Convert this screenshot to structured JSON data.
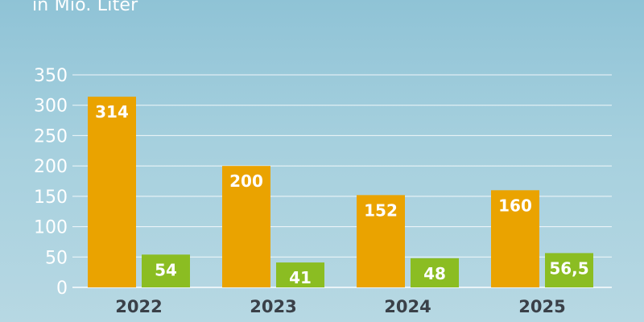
{
  "chart_data": {
    "type": "bar",
    "subtitle": "in Mio. Liter",
    "categories": [
      "2022",
      "2023",
      "2024",
      "2025"
    ],
    "series": [
      {
        "values": [
          314,
          200,
          152,
          160
        ],
        "labels": [
          "314",
          "200",
          "152",
          "160"
        ],
        "color": "#eaa300"
      },
      {
        "values": [
          54,
          41,
          48,
          56.5
        ],
        "labels": [
          "54",
          "41",
          "48",
          "56,5"
        ],
        "color": "#8bbd22"
      }
    ],
    "yticks": [
      "0",
      "50",
      "100",
      "150",
      "200",
      "250",
      "300",
      "350"
    ],
    "ylim": [
      0,
      350
    ],
    "grid": true,
    "colors": {
      "gridline": "#ffffff",
      "category_text": "#3a4048"
    }
  }
}
